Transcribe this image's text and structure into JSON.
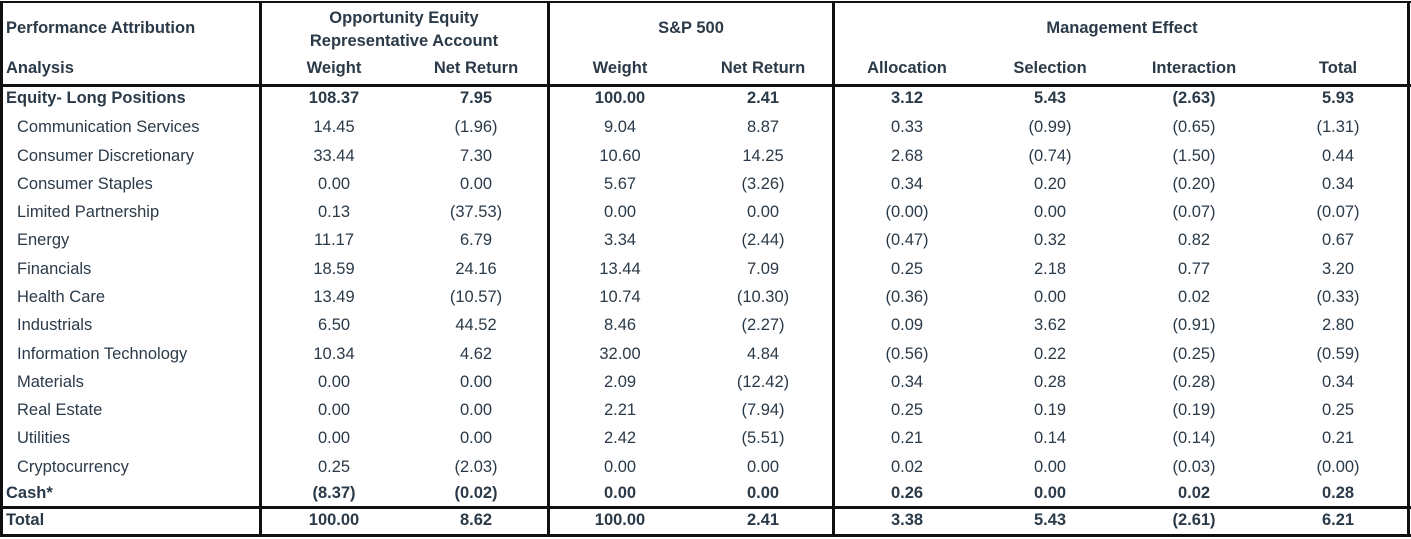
{
  "header": {
    "col1_line1": "Performance Attribution",
    "col1_line2": "Analysis",
    "group_portfolio_line1": "Opportunity Equity",
    "group_portfolio_line2": "Representative Account",
    "group_benchmark": "S&P 500",
    "group_management": "Management Effect",
    "sub_weight_a": "Weight",
    "sub_netreturn_a": "Net Return",
    "sub_weight_b": "Weight",
    "sub_netreturn_b": "Net Return",
    "sub_allocation": "Allocation",
    "sub_selection": "Selection",
    "sub_interaction": "Interaction",
    "sub_total": "Total"
  },
  "rows": [
    {
      "label": "Equity- Long Positions",
      "bold": true,
      "indent": false,
      "values": [
        "108.37",
        "7.95",
        "100.00",
        "2.41",
        "3.12",
        "5.43",
        "(2.63)",
        "5.93"
      ]
    },
    {
      "label": "Communication Services",
      "bold": false,
      "indent": true,
      "values": [
        "14.45",
        "(1.96)",
        "9.04",
        "8.87",
        "0.33",
        "(0.99)",
        "(0.65)",
        "(1.31)"
      ]
    },
    {
      "label": "Consumer Discretionary",
      "bold": false,
      "indent": true,
      "values": [
        "33.44",
        "7.30",
        "10.60",
        "14.25",
        "2.68",
        "(0.74)",
        "(1.50)",
        "0.44"
      ]
    },
    {
      "label": "Consumer Staples",
      "bold": false,
      "indent": true,
      "values": [
        "0.00",
        "0.00",
        "5.67",
        "(3.26)",
        "0.34",
        "0.20",
        "(0.20)",
        "0.34"
      ]
    },
    {
      "label": "Limited Partnership",
      "bold": false,
      "indent": true,
      "values": [
        "0.13",
        "(37.53)",
        "0.00",
        "0.00",
        "(0.00)",
        "0.00",
        "(0.07)",
        "(0.07)"
      ]
    },
    {
      "label": "Energy",
      "bold": false,
      "indent": true,
      "values": [
        "11.17",
        "6.79",
        "3.34",
        "(2.44)",
        "(0.47)",
        "0.32",
        "0.82",
        "0.67"
      ]
    },
    {
      "label": "Financials",
      "bold": false,
      "indent": true,
      "values": [
        "18.59",
        "24.16",
        "13.44",
        "7.09",
        "0.25",
        "2.18",
        "0.77",
        "3.20"
      ]
    },
    {
      "label": "Health Care",
      "bold": false,
      "indent": true,
      "values": [
        "13.49",
        "(10.57)",
        "10.74",
        "(10.30)",
        "(0.36)",
        "0.00",
        "0.02",
        "(0.33)"
      ]
    },
    {
      "label": "Industrials",
      "bold": false,
      "indent": true,
      "values": [
        "6.50",
        "44.52",
        "8.46",
        "(2.27)",
        "0.09",
        "3.62",
        "(0.91)",
        "2.80"
      ]
    },
    {
      "label": "Information Technology",
      "bold": false,
      "indent": true,
      "values": [
        "10.34",
        "4.62",
        "32.00",
        "4.84",
        "(0.56)",
        "0.22",
        "(0.25)",
        "(0.59)"
      ]
    },
    {
      "label": "Materials",
      "bold": false,
      "indent": true,
      "values": [
        "0.00",
        "0.00",
        "2.09",
        "(12.42)",
        "0.34",
        "0.28",
        "(0.28)",
        "0.34"
      ]
    },
    {
      "label": "Real Estate",
      "bold": false,
      "indent": true,
      "values": [
        "0.00",
        "0.00",
        "2.21",
        "(7.94)",
        "0.25",
        "0.19",
        "(0.19)",
        "0.25"
      ]
    },
    {
      "label": "Utilities",
      "bold": false,
      "indent": true,
      "values": [
        "0.00",
        "0.00",
        "2.42",
        "(5.51)",
        "0.21",
        "0.14",
        "(0.14)",
        "0.21"
      ]
    },
    {
      "label": "Cryptocurrency",
      "bold": false,
      "indent": true,
      "values": [
        "0.25",
        "(2.03)",
        "0.00",
        "0.00",
        "0.02",
        "0.00",
        "(0.03)",
        "(0.00)"
      ]
    },
    {
      "label": "Cash*",
      "bold": true,
      "indent": false,
      "values": [
        "(8.37)",
        "(0.02)",
        "0.00",
        "0.00",
        "0.26",
        "0.00",
        "0.02",
        "0.28"
      ]
    }
  ],
  "total_row": {
    "label": "Total",
    "bold": true,
    "values": [
      "100.00",
      "8.62",
      "100.00",
      "2.41",
      "3.38",
      "5.43",
      "(2.61)",
      "6.21"
    ]
  }
}
